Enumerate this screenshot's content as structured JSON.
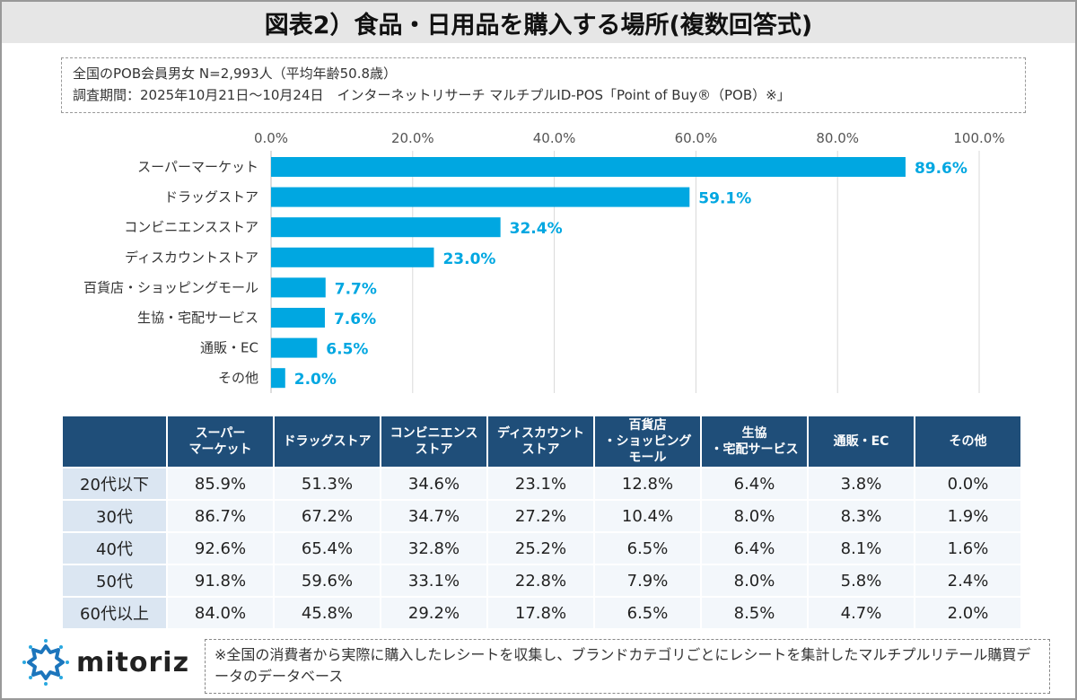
{
  "title": "図表2）食品・日用品を購入する場所(複数回答式)",
  "info": {
    "line1": "全国のPOB会員男女 N=2,993人（平均年齢50.8歳）",
    "line2": "調査期間：2025年10月21日～10月24日　インターネットリサーチ マルチプルID-POS「Point of Buy®（POB）※」"
  },
  "chart_data": {
    "type": "bar",
    "orientation": "horizontal",
    "categories": [
      "スーパーマーケット",
      "ドラッグストア",
      "コンビニエンスストア",
      "ディスカウントストア",
      "百貨店・ショッピングモール",
      "生協・宅配サービス",
      "通販・EC",
      "その他"
    ],
    "values": [
      89.6,
      59.1,
      32.4,
      23.0,
      7.7,
      7.6,
      6.5,
      2.0
    ],
    "data_labels": [
      "89.6%",
      "59.1%",
      "32.4%",
      "23.0%",
      "7.7%",
      "7.6%",
      "6.5%",
      "2.0%"
    ],
    "xlim": [
      0,
      100
    ],
    "x_ticks": [
      "0.0%",
      "20.0%",
      "40.0%",
      "60.0%",
      "80.0%",
      "100.0%"
    ],
    "x_axis_position": "top",
    "grid": true,
    "bar_color": "#00a7e1"
  },
  "table": {
    "headers": [
      "",
      "スーパー\nマーケット",
      "ドラッグストア",
      "コンビニエンス\nストア",
      "ディスカウント\nストア",
      "百貨店\n・ショッピング\nモール",
      "生協\n・宅配サービス",
      "通販・EC",
      "その他"
    ],
    "rows": [
      [
        "20代以下",
        "85.9%",
        "51.3%",
        "34.6%",
        "23.1%",
        "12.8%",
        "6.4%",
        "3.8%",
        "0.0%"
      ],
      [
        "30代",
        "86.7%",
        "67.2%",
        "34.7%",
        "27.2%",
        "10.4%",
        "8.0%",
        "8.3%",
        "1.9%"
      ],
      [
        "40代",
        "92.6%",
        "65.4%",
        "32.8%",
        "25.2%",
        "6.5%",
        "6.4%",
        "8.1%",
        "1.6%"
      ],
      [
        "50代",
        "91.8%",
        "59.6%",
        "33.1%",
        "22.8%",
        "7.9%",
        "8.0%",
        "5.8%",
        "2.4%"
      ],
      [
        "60代以上",
        "84.0%",
        "45.8%",
        "29.2%",
        "17.8%",
        "6.5%",
        "8.5%",
        "4.7%",
        "2.0%"
      ]
    ]
  },
  "logo": {
    "text": "mitoriz"
  },
  "note": "※全国の消費者から実際に購入したレシートを収集し、ブランドカテゴリごとにレシートを集計したマルチプルリテール購買データのデータベース"
}
